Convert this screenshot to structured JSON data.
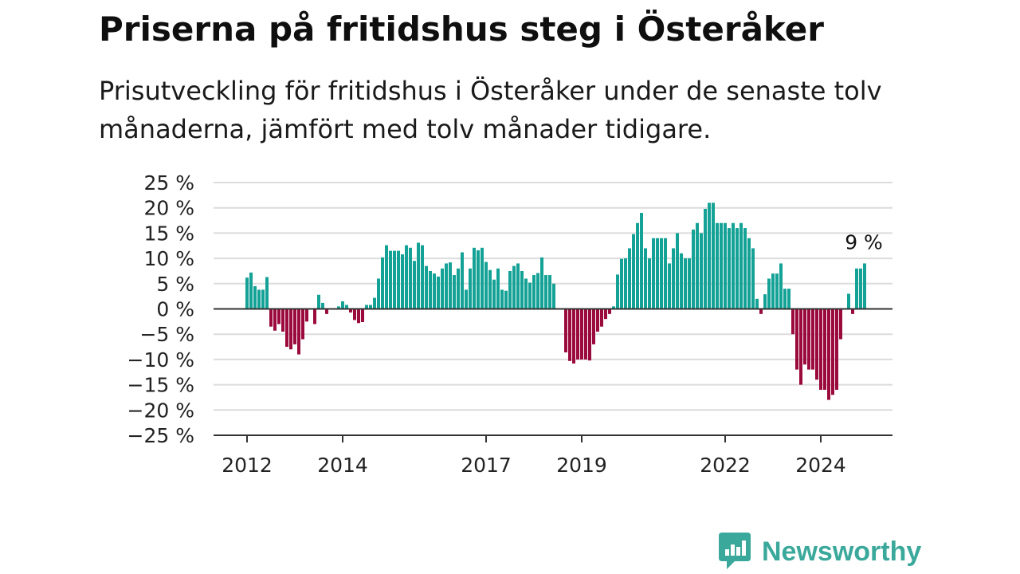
{
  "header": {
    "title": "Priserna på fritidshus steg i Österåker",
    "subtitle": "Prisutveckling för fritidshus i Österåker under de senaste tolv månaderna, jämfört med tolv månader tidigare."
  },
  "brand": {
    "name": "Newsworthy",
    "icon": "newsworthy-logo-icon",
    "color": "#3aa89a"
  },
  "colors": {
    "positive": "#15a296",
    "negative": "#9b0a3c",
    "grid": "#dcdcdc",
    "axis": "#333333"
  },
  "chart_data": {
    "type": "bar",
    "title": "Priserna på fritidshus steg i Österåker",
    "xlabel": "",
    "ylabel": "",
    "x_start": "2012-01",
    "x_ticks": [
      "2012",
      "2014",
      "2017",
      "2019",
      "2022",
      "2024"
    ],
    "y_ticks": [
      "25 %",
      "20 %",
      "15 %",
      "10 %",
      "5 %",
      "0 %",
      "−5 %",
      "−10 %",
      "−15 %",
      "−20 %",
      "−25 %"
    ],
    "ylim": [
      -25,
      25
    ],
    "grid": true,
    "annotation": "9 %",
    "series": [
      {
        "name": "",
        "values": [
          6.2,
          7.2,
          4.5,
          3.8,
          3.8,
          6.3,
          -3.5,
          -4.3,
          -3,
          -4.5,
          -7.5,
          -8,
          -7,
          -9,
          -6,
          -2.5,
          0,
          -3,
          2.8,
          1.2,
          -1,
          0,
          0,
          0.5,
          1.5,
          0.8,
          -0.7,
          -2.2,
          -2.8,
          -2.6,
          0.8,
          0.8,
          2.2,
          6,
          10.2,
          12.6,
          11.5,
          11.5,
          11.5,
          10.8,
          12.6,
          12.1,
          9.5,
          13.1,
          12.6,
          8.5,
          7.5,
          7,
          6.4,
          8,
          9,
          9.2,
          6.7,
          8,
          11.2,
          3.8,
          8,
          12.1,
          11.6,
          12.1,
          9.3,
          7.7,
          5.8,
          8,
          3.8,
          3.6,
          7.5,
          8.5,
          9,
          7.5,
          6,
          5.2,
          6.7,
          7.1,
          10.2,
          6.7,
          6.7,
          5,
          0,
          0,
          -8.6,
          -10.3,
          -10.8,
          -10,
          -10,
          -10,
          -10.2,
          -7,
          -4.5,
          -3.5,
          -2,
          -1,
          0.5,
          6.8,
          9.9,
          10,
          12,
          14.8,
          17,
          19,
          12,
          10,
          14,
          14,
          14,
          14,
          9,
          12,
          15,
          11,
          10,
          10,
          15.7,
          17,
          15,
          19.8,
          21,
          21,
          17,
          17,
          17,
          16,
          17,
          16,
          17,
          16,
          14,
          12,
          2,
          -1,
          2.9,
          6,
          7,
          7,
          9,
          4,
          4,
          -5,
          -12,
          -15,
          -11,
          -12,
          -12,
          -14,
          -16,
          -16,
          -18,
          -17,
          -16,
          -6,
          0,
          3,
          -1,
          8,
          8,
          9
        ]
      }
    ]
  }
}
